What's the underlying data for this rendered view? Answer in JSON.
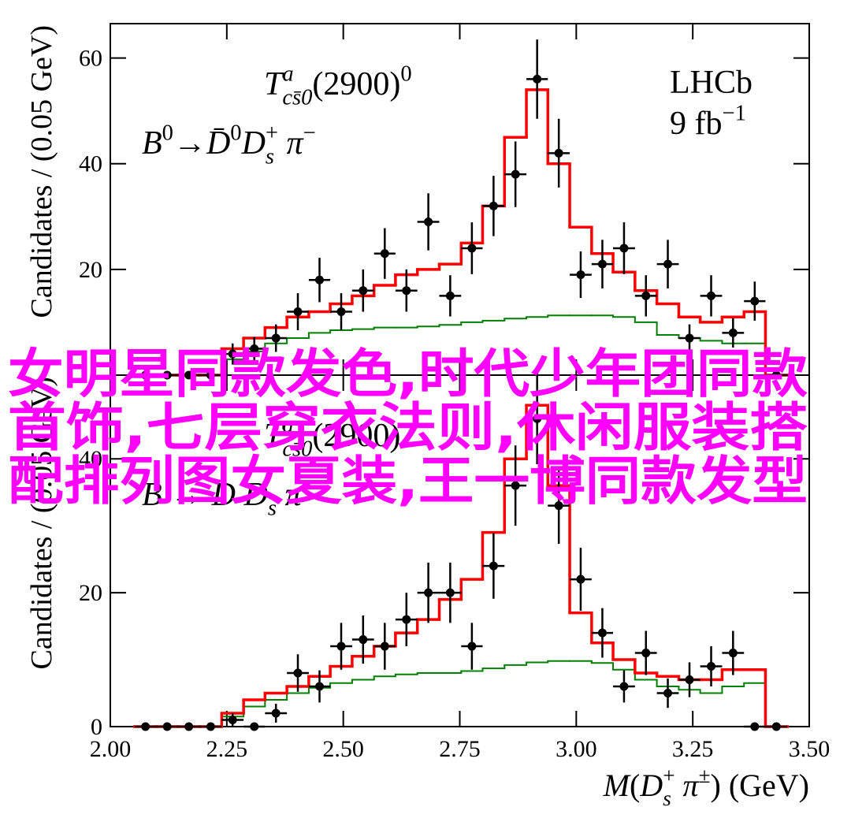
{
  "chart_data": [
    {
      "type": "histogram",
      "ylabel": "Candidates / (0.05 GeV)",
      "annotations": [
        [
          {
            "text": "T",
            "italic": true
          },
          {
            "text": "a",
            "italic": true,
            "pos": "sup"
          },
          {
            "text": "cs̄0",
            "italic": true,
            "pos": "sub",
            "stack": true
          },
          {
            "text": "(2900)"
          },
          {
            "text": "0",
            "pos": "sup"
          }
        ],
        [
          {
            "text": "B",
            "italic": true
          },
          {
            "text": "0",
            "pos": "sup"
          },
          {
            "text": "→"
          },
          {
            "text": "D̄",
            "italic": true
          },
          {
            "text": "0",
            "pos": "sup"
          },
          {
            "text": "D",
            "italic": true
          },
          {
            "text": "s",
            "italic": true,
            "pos": "sub"
          },
          {
            "text": "+",
            "pos": "sup",
            "stack": true
          },
          {
            "text": " π",
            "italic": true
          },
          {
            "text": "−",
            "pos": "sup"
          }
        ],
        [
          {
            "text": "LHCb"
          }
        ],
        [
          {
            "text": "9 fb"
          },
          {
            "text": "−1",
            "pos": "sup"
          }
        ]
      ],
      "bins": [
        2.052,
        2.099,
        2.145,
        2.192,
        2.239,
        2.286,
        2.332,
        2.379,
        2.426,
        2.472,
        2.519,
        2.566,
        2.612,
        2.659,
        2.706,
        2.753,
        2.799,
        2.846,
        2.893,
        2.939,
        2.986,
        3.033,
        3.079,
        3.126,
        3.173,
        3.22,
        3.266,
        3.313,
        3.36,
        3.406,
        3.453
      ],
      "data": {
        "color": "#000000",
        "values": [
          0,
          0,
          0,
          0,
          4,
          5,
          7,
          12,
          18,
          12,
          16,
          23,
          16,
          29,
          15,
          24,
          32,
          38,
          56,
          42,
          19,
          21,
          24,
          15,
          21,
          7,
          15,
          8,
          14,
          0
        ],
        "errors": [
          0,
          0,
          0,
          0,
          2,
          2.2,
          2.6,
          3.5,
          4.2,
          3.5,
          4,
          4.8,
          4,
          5.4,
          3.9,
          4.9,
          5.7,
          6.2,
          7.5,
          6.5,
          4.4,
          4.6,
          4.9,
          3.9,
          4.6,
          2.6,
          3.9,
          2.8,
          3.7,
          0
        ]
      },
      "fit": {
        "color": "#ff0000",
        "values": [
          0,
          0,
          0,
          0,
          5,
          7,
          9,
          11,
          12,
          13.5,
          15,
          17,
          19,
          20,
          21,
          25,
          32,
          45,
          54,
          40,
          28,
          23,
          19.5,
          16,
          13.5,
          11,
          10,
          11,
          12,
          0
        ]
      },
      "background": {
        "color": "#008000",
        "values": [
          0,
          0,
          0,
          0,
          3,
          4.5,
          6,
          7,
          8,
          8.5,
          8.7,
          9,
          9,
          9.2,
          9.5,
          10,
          10.3,
          10.7,
          11,
          11.3,
          11.3,
          11.3,
          11,
          10,
          7.6,
          7,
          6.5,
          6,
          6,
          0
        ]
      },
      "xlim": [
        2.0,
        3.5
      ],
      "ylim": [
        0,
        66.5
      ],
      "yticks": [
        20,
        40,
        60
      ]
    },
    {
      "type": "histogram",
      "ylabel": "Candidates / (0.05 GeV)",
      "xlabel": [
        {
          "text": "M",
          "italic": true
        },
        {
          "text": "(",
          "pos": "base"
        },
        {
          "text": "D",
          "italic": true
        },
        {
          "text": "s",
          "italic": true,
          "pos": "sub"
        },
        {
          "text": "+",
          "pos": "sup",
          "stack": true
        },
        {
          "text": " π",
          "italic": true
        },
        {
          "text": "±",
          "pos": "sup"
        },
        {
          "text": ") (GeV)"
        }
      ],
      "annotations": [
        [
          {
            "text": "T",
            "italic": true
          },
          {
            "text": "a",
            "italic": true,
            "pos": "sup"
          },
          {
            "text": "cs̄0",
            "italic": true,
            "pos": "sub",
            "stack": true
          },
          {
            "text": "(2900)"
          }
        ],
        [
          {
            "text": "B",
            "italic": true
          },
          {
            "text": " → "
          },
          {
            "text": "D",
            "italic": true
          },
          {
            "text": " D",
            "italic": true
          },
          {
            "text": "s",
            "italic": true,
            "pos": "sub"
          },
          {
            "text": " π",
            "italic": true
          }
        ]
      ],
      "bins": [
        2.052,
        2.099,
        2.145,
        2.192,
        2.239,
        2.286,
        2.332,
        2.379,
        2.426,
        2.472,
        2.519,
        2.566,
        2.612,
        2.659,
        2.706,
        2.753,
        2.799,
        2.846,
        2.893,
        2.939,
        2.986,
        3.033,
        3.079,
        3.126,
        3.173,
        3.22,
        3.266,
        3.313,
        3.36,
        3.406,
        3.453
      ],
      "data": {
        "color": "#000000",
        "values": [
          0,
          0,
          0,
          0,
          1,
          0,
          2,
          8,
          6,
          12,
          13,
          12,
          16,
          20,
          20,
          12,
          24,
          36,
          46,
          33,
          22,
          14,
          6,
          11,
          5,
          7,
          9,
          11,
          0,
          0
        ],
        "errors": [
          0,
          0,
          0,
          0,
          1,
          0,
          1.4,
          2.8,
          2.4,
          3.5,
          3.6,
          3.5,
          4,
          4.5,
          4.5,
          3.5,
          4.9,
          6,
          6.8,
          5.7,
          4.7,
          3.7,
          2.4,
          3.3,
          2.2,
          2.6,
          3,
          3.3,
          0,
          0
        ]
      },
      "fit": {
        "color": "#ff0000",
        "values": [
          0,
          0,
          0,
          0,
          2,
          4,
          5,
          6,
          7.5,
          9,
          10.5,
          12,
          14,
          16,
          19,
          22,
          29,
          40,
          48,
          36,
          17,
          12.5,
          10,
          8,
          7.5,
          7,
          7,
          8.5,
          8.5,
          0
        ]
      },
      "background": {
        "color": "#008000",
        "values": [
          0,
          0,
          0,
          0,
          1.5,
          3,
          4,
          5,
          5.8,
          6.5,
          7,
          7.5,
          7.8,
          8,
          8,
          8.3,
          8.7,
          9.2,
          9.6,
          9.8,
          9.8,
          9.5,
          8.5,
          7,
          6,
          5.5,
          5,
          6,
          6.5,
          0
        ]
      },
      "xlim": [
        2.0,
        3.5
      ],
      "xticks": [
        {
          "value": 2.0,
          "label": "2.00"
        },
        {
          "value": 2.25,
          "label": "2.25"
        },
        {
          "value": 2.5,
          "label": "2.50"
        },
        {
          "value": 2.75,
          "label": "2.75"
        },
        {
          "value": 3.0,
          "label": "3.00"
        },
        {
          "value": 3.25,
          "label": "3.25"
        },
        {
          "value": 3.5,
          "label": "3.50"
        }
      ],
      "ylim": [
        0,
        52.5
      ],
      "yticks": [
        0,
        20,
        40
      ]
    }
  ],
  "overlay_text": [
    "女明星同款发色,时代少年团同款",
    "首饰,七层穿衣法则,休闲服装搭",
    "配排列图女夏装,王一博同款发型"
  ]
}
